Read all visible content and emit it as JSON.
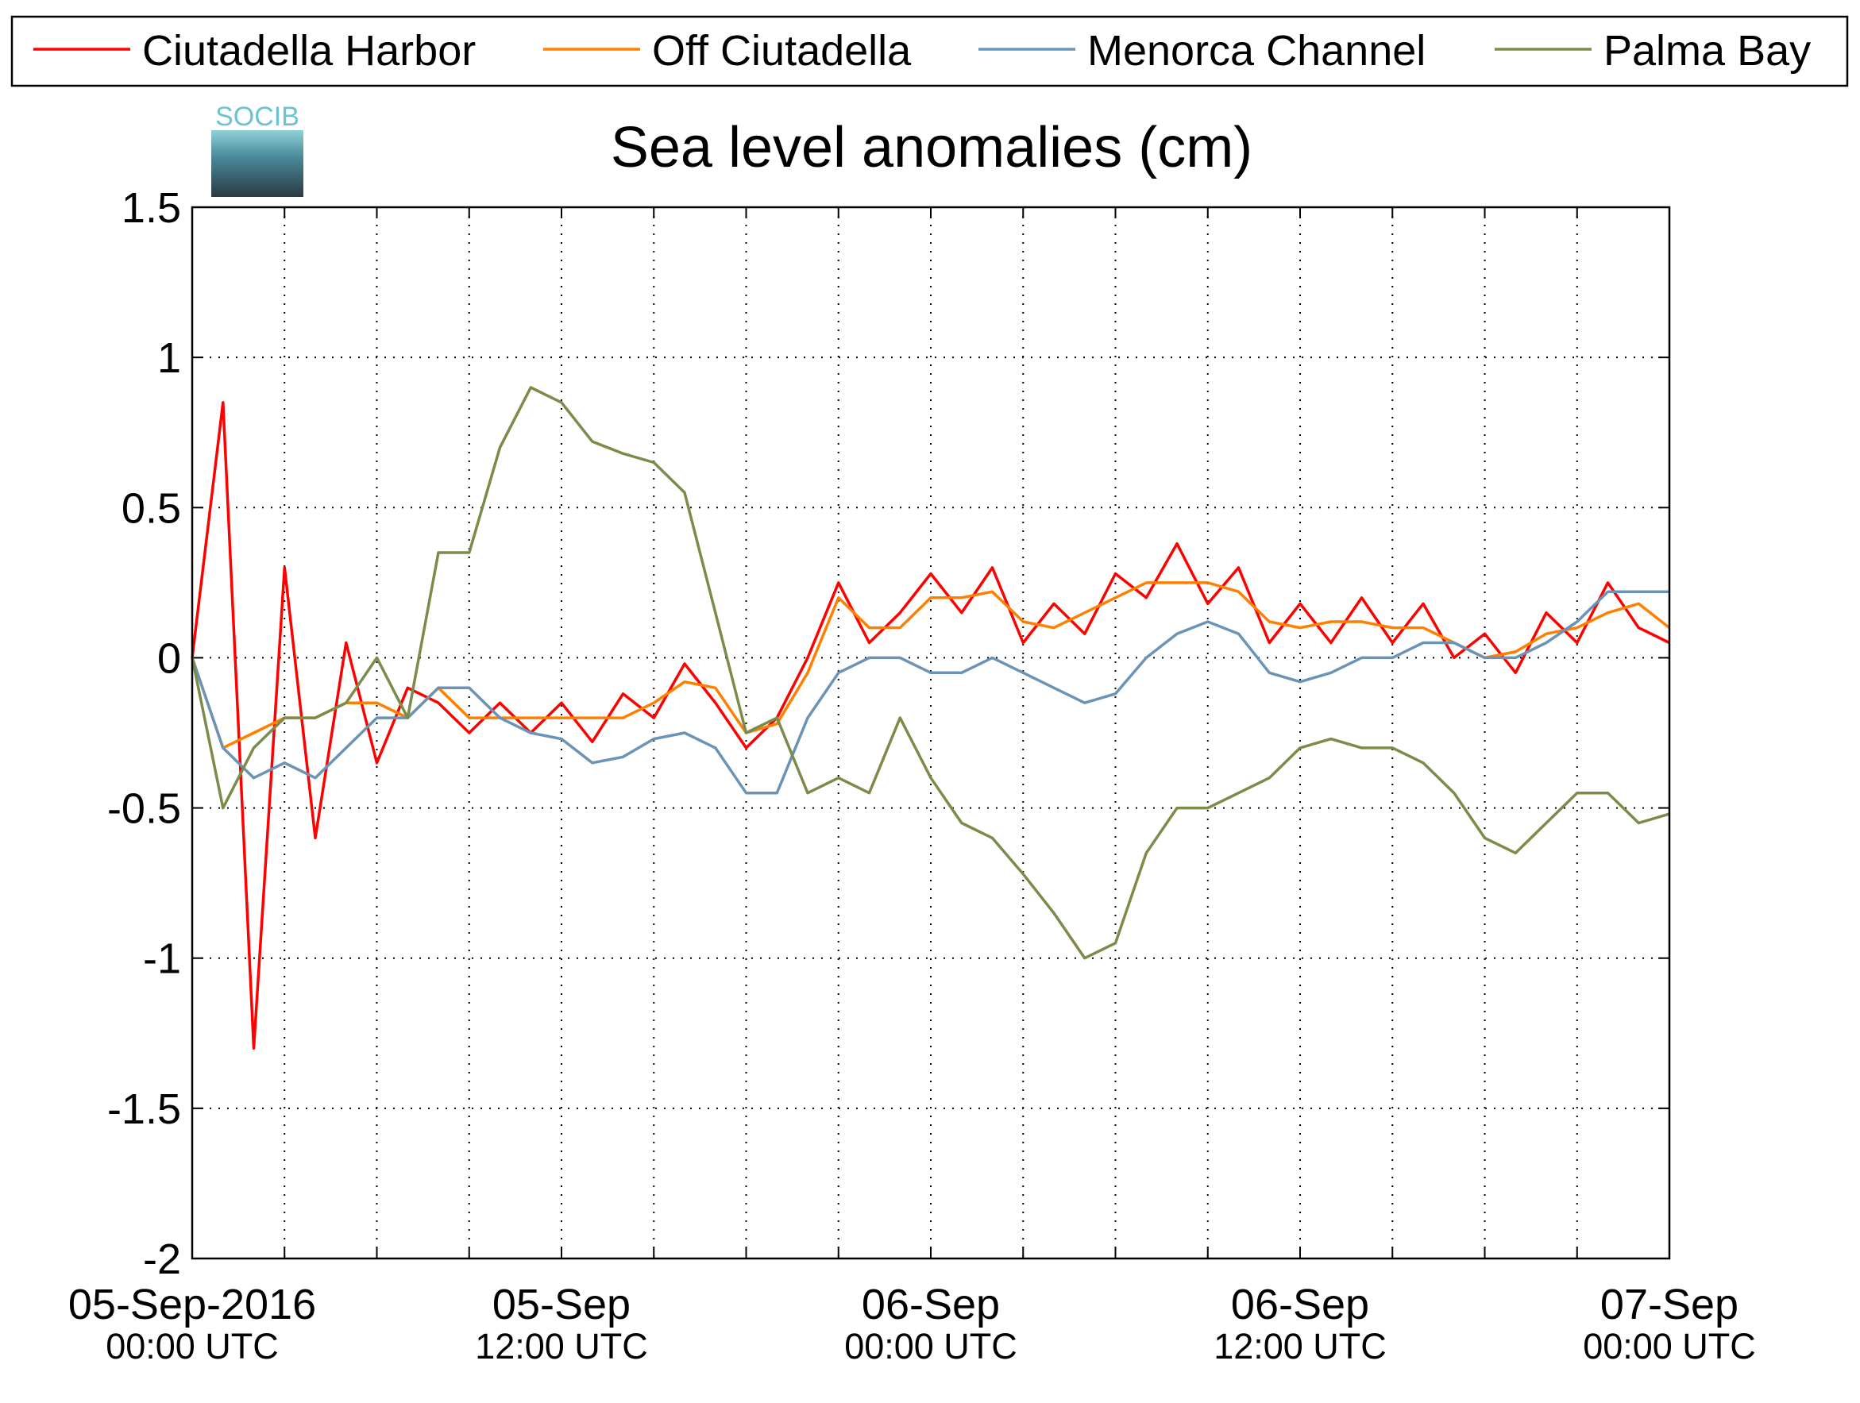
{
  "chart_data": {
    "type": "line",
    "title": "Sea level anomalies (cm)",
    "logo_text": "SOCIB",
    "x": [
      "2016-09-05T00:00",
      "2016-09-05T01:00",
      "2016-09-05T02:00",
      "2016-09-05T03:00",
      "2016-09-05T04:00",
      "2016-09-05T05:00",
      "2016-09-05T06:00",
      "2016-09-05T07:00",
      "2016-09-05T08:00",
      "2016-09-05T09:00",
      "2016-09-05T10:00",
      "2016-09-05T11:00",
      "2016-09-05T12:00",
      "2016-09-05T13:00",
      "2016-09-05T14:00",
      "2016-09-05T15:00",
      "2016-09-05T16:00",
      "2016-09-05T17:00",
      "2016-09-05T18:00",
      "2016-09-05T19:00",
      "2016-09-05T20:00",
      "2016-09-05T21:00",
      "2016-09-05T22:00",
      "2016-09-05T23:00",
      "2016-09-06T00:00",
      "2016-09-06T01:00",
      "2016-09-06T02:00",
      "2016-09-06T03:00",
      "2016-09-06T04:00",
      "2016-09-06T05:00",
      "2016-09-06T06:00",
      "2016-09-06T07:00",
      "2016-09-06T08:00",
      "2016-09-06T09:00",
      "2016-09-06T10:00",
      "2016-09-06T11:00",
      "2016-09-06T12:00",
      "2016-09-06T13:00",
      "2016-09-06T14:00",
      "2016-09-06T15:00",
      "2016-09-06T16:00",
      "2016-09-06T17:00",
      "2016-09-06T18:00",
      "2016-09-06T19:00",
      "2016-09-06T20:00",
      "2016-09-06T21:00",
      "2016-09-06T22:00",
      "2016-09-06T23:00",
      "2016-09-07T00:00"
    ],
    "series": [
      {
        "name": "Ciutadella Harbor",
        "color": "#ff0000",
        "values": [
          0,
          0.85,
          -1.3,
          0.3,
          -0.6,
          0.05,
          -0.35,
          -0.1,
          -0.15,
          -0.25,
          -0.15,
          -0.25,
          -0.15,
          -0.28,
          -0.12,
          -0.2,
          -0.02,
          -0.15,
          -0.3,
          -0.2,
          0.0,
          0.25,
          0.05,
          0.15,
          0.28,
          0.15,
          0.3,
          0.05,
          0.18,
          0.08,
          0.28,
          0.2,
          0.38,
          0.18,
          0.3,
          0.05,
          0.18,
          0.05,
          0.2,
          0.05,
          0.18,
          0.0,
          0.08,
          -0.05,
          0.15,
          0.05,
          0.25,
          0.1,
          0.05
        ]
      },
      {
        "name": "Off Ciutadella",
        "color": "#ff8000",
        "values": [
          0,
          -0.3,
          -0.25,
          -0.2,
          -0.2,
          -0.15,
          -0.15,
          -0.2,
          -0.1,
          -0.2,
          -0.2,
          -0.2,
          -0.2,
          -0.2,
          -0.2,
          -0.15,
          -0.08,
          -0.1,
          -0.25,
          -0.22,
          -0.05,
          0.2,
          0.1,
          0.1,
          0.2,
          0.2,
          0.22,
          0.12,
          0.1,
          0.15,
          0.2,
          0.25,
          0.25,
          0.25,
          0.22,
          0.12,
          0.1,
          0.12,
          0.12,
          0.1,
          0.1,
          0.05,
          0.0,
          0.02,
          0.08,
          0.1,
          0.15,
          0.18,
          0.1
        ]
      },
      {
        "name": "Menorca Channel",
        "color": "#6a93b8",
        "values": [
          0,
          -0.3,
          -0.4,
          -0.35,
          -0.4,
          -0.3,
          -0.2,
          -0.2,
          -0.1,
          -0.1,
          -0.2,
          -0.25,
          -0.27,
          -0.35,
          -0.33,
          -0.27,
          -0.25,
          -0.3,
          -0.45,
          -0.45,
          -0.2,
          -0.05,
          0.0,
          0.0,
          -0.05,
          -0.05,
          0.0,
          -0.05,
          -0.1,
          -0.15,
          -0.12,
          0.0,
          0.08,
          0.12,
          0.08,
          -0.05,
          -0.08,
          -0.05,
          0.0,
          0.0,
          0.05,
          0.05,
          0.0,
          0.0,
          0.05,
          0.12,
          0.22,
          0.22,
          0.22
        ]
      },
      {
        "name": "Palma Bay",
        "color": "#7a8c4a",
        "values": [
          0,
          -0.5,
          -0.3,
          -0.2,
          -0.2,
          -0.15,
          0.0,
          -0.2,
          0.35,
          0.35,
          0.7,
          0.9,
          0.85,
          0.72,
          0.68,
          0.65,
          0.55,
          0.15,
          -0.25,
          -0.2,
          -0.45,
          -0.4,
          -0.45,
          -0.2,
          -0.4,
          -0.55,
          -0.6,
          -0.72,
          -0.85,
          -1.0,
          -0.95,
          -0.65,
          -0.5,
          -0.5,
          -0.45,
          -0.4,
          -0.3,
          -0.27,
          -0.3,
          -0.3,
          -0.35,
          -0.45,
          -0.6,
          -0.65,
          -0.55,
          -0.45,
          -0.45,
          -0.55,
          -0.52
        ]
      }
    ],
    "xlim": [
      "2016-09-05T00:00",
      "2016-09-07T00:00"
    ],
    "xticks": [
      {
        "value": "2016-09-05T00:00",
        "label": "05-Sep-2016",
        "sublabel": "00:00 UTC"
      },
      {
        "value": "2016-09-05T12:00",
        "label": "05-Sep",
        "sublabel": "12:00 UTC"
      },
      {
        "value": "2016-09-06T00:00",
        "label": "06-Sep",
        "sublabel": "00:00 UTC"
      },
      {
        "value": "2016-09-06T12:00",
        "label": "06-Sep",
        "sublabel": "12:00 UTC"
      },
      {
        "value": "2016-09-07T00:00",
        "label": "07-Sep",
        "sublabel": "00:00 UTC"
      }
    ],
    "xgrid": [
      "2016-09-05T03:00",
      "2016-09-05T06:00",
      "2016-09-05T09:00",
      "2016-09-05T12:00",
      "2016-09-05T15:00",
      "2016-09-05T18:00",
      "2016-09-05T21:00",
      "2016-09-06T00:00",
      "2016-09-06T03:00",
      "2016-09-06T06:00",
      "2016-09-06T09:00",
      "2016-09-06T12:00",
      "2016-09-06T15:00",
      "2016-09-06T18:00",
      "2016-09-06T21:00"
    ],
    "ylim": [
      -2,
      1.5
    ],
    "yticks": [
      -2,
      -1.5,
      -1,
      -0.5,
      0,
      0.5,
      1,
      1.5
    ],
    "grid": true,
    "legend": "top"
  }
}
